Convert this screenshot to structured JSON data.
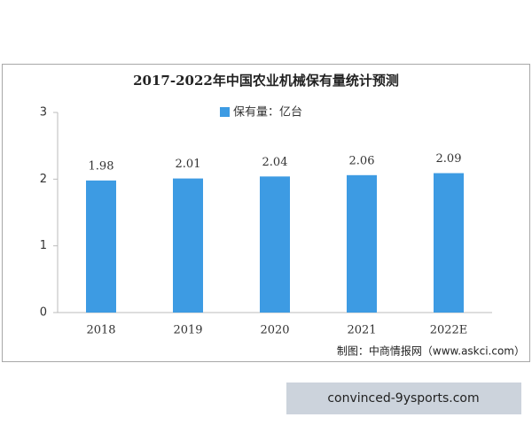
{
  "chart_data": {
    "type": "bar",
    "title": "2017-2022年中国农业机械保有量统计预测",
    "categories": [
      "2018",
      "2019",
      "2020",
      "2021",
      "2022E"
    ],
    "series": [
      {
        "name": "保有量：亿台",
        "color": "#3d9be3",
        "values": [
          1.98,
          2.01,
          2.04,
          2.06,
          2.09
        ]
      }
    ],
    "ylim": [
      0,
      3
    ],
    "yticks": [
      0,
      1,
      2,
      3
    ],
    "grid": false,
    "source": "制图：中商情报网（www.askci.com）"
  },
  "banner": "convinced-9ysports.com"
}
